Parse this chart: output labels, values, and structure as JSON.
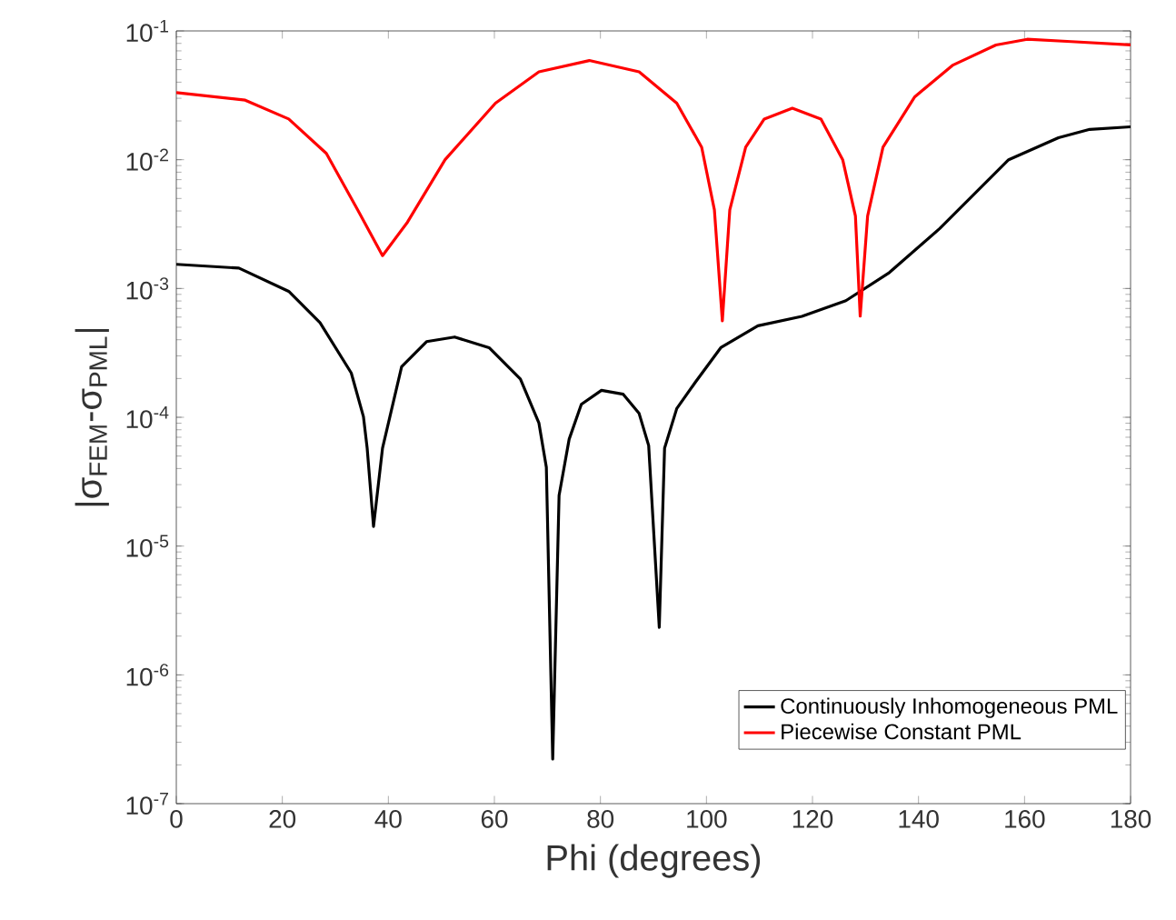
{
  "chart_data": {
    "type": "line",
    "xlabel": "Phi (degrees)",
    "ylabel": "|σ$_{FEM}$-σ$_{PML}$|",
    "log": "y",
    "legend": "bottom right",
    "marker": "none",
    "line_style": "solid",
    "xlim": [
      0,
      180
    ],
    "xticks": [
      0,
      20,
      40,
      60,
      80,
      100,
      120,
      140,
      160,
      180
    ],
    "ylim": [
      1e-07,
      0.1
    ],
    "yticks": [
      {
        "value": 1e-07,
        "label": "10$^{-7}$"
      },
      {
        "value": 1e-06,
        "label": "10$^{-6}$"
      },
      {
        "value": 1e-05,
        "label": "10$^{-5}$"
      },
      {
        "value": 0.0001,
        "label": "10$^{-4}$"
      },
      {
        "value": 0.001,
        "label": "10$^{-3}$"
      },
      {
        "value": 0.01,
        "label": "10$^{-2}$"
      },
      {
        "value": 0.1,
        "label": "10$^{-1}$"
      }
    ],
    "series": [
      {
        "name": "Continuously Inhomogeneous PML",
        "color": "#000000",
        "x": [
          0,
          11.8,
          21.2,
          27.1,
          33.0,
          35.3,
          36.0,
          37.2,
          38.9,
          42.5,
          47.2,
          52.5,
          59.0,
          64.9,
          68.4,
          69.8,
          71.0,
          72.2,
          74.1,
          76.4,
          80.2,
          84.3,
          87.3,
          89.1,
          91.1,
          92.1,
          94.4,
          97.9,
          102.7,
          109.7,
          118.0,
          126.3,
          134.5,
          144.0,
          157.0,
          166.4,
          172.3,
          180
        ],
        "values": [
          0.00154,
          0.00144,
          0.00095,
          0.000543,
          0.000221,
          0.000101,
          5.77e-05,
          1.42e-05,
          5.77e-05,
          0.000247,
          0.000387,
          0.00042,
          0.000347,
          0.000198,
          9e-05,
          4.09e-05,
          2.22e-07,
          2.47e-05,
          6.76e-05,
          0.000126,
          0.000162,
          0.000151,
          0.000107,
          6.03e-05,
          2.34e-06,
          5.75e-05,
          0.000117,
          0.000187,
          0.000347,
          0.000513,
          0.000608,
          0.000804,
          0.00133,
          0.00292,
          0.01,
          0.0148,
          0.0172,
          0.018
        ]
      },
      {
        "name": "Piecewise Constant PML",
        "color": "#ff0000",
        "x": [
          0,
          13.0,
          21.2,
          28.3,
          34.2,
          38.9,
          43.6,
          50.7,
          60.2,
          68.4,
          77.9,
          87.3,
          94.4,
          99.1,
          101.5,
          103.0,
          104.4,
          107.4,
          110.9,
          116.2,
          121.6,
          125.7,
          128.1,
          129.0,
          130.4,
          133.3,
          139.3,
          146.4,
          154.6,
          160.5,
          168.8,
          180
        ],
        "values": [
          0.0332,
          0.029,
          0.0207,
          0.0112,
          0.00408,
          0.0018,
          0.00327,
          0.01,
          0.0275,
          0.0481,
          0.0589,
          0.0481,
          0.0275,
          0.0125,
          0.00408,
          0.00056,
          0.00408,
          0.0125,
          0.0207,
          0.0251,
          0.0207,
          0.01,
          0.00365,
          0.00061,
          0.00365,
          0.0125,
          0.0308,
          0.054,
          0.0778,
          0.0861,
          0.0826,
          0.0778
        ]
      }
    ]
  }
}
